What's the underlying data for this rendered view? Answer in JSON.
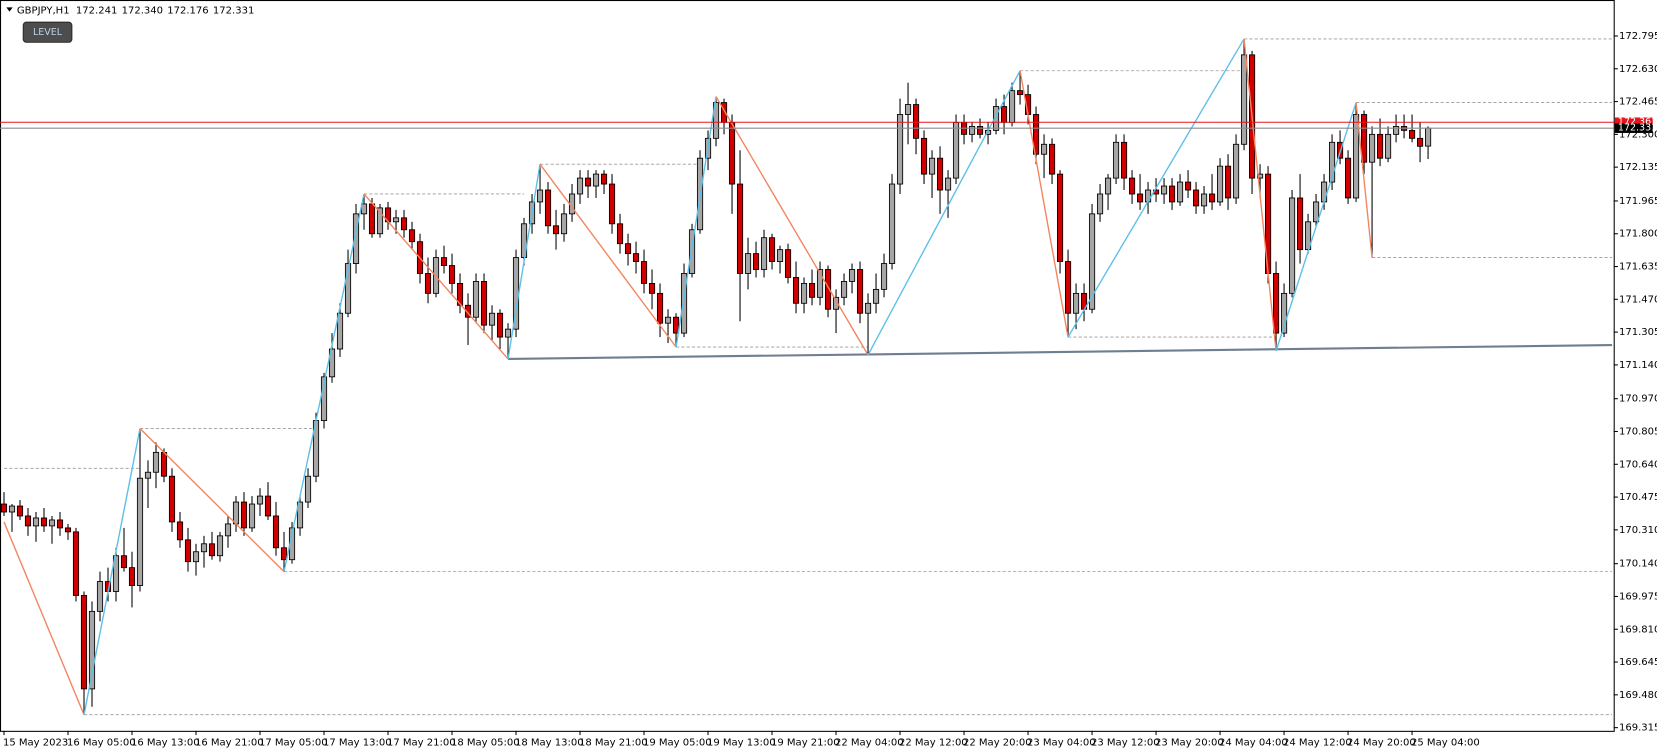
{
  "chart_data": {
    "type": "candlestick",
    "title": "GBPJPY,H1",
    "ohlc_value_labels": [
      "172.241",
      "172.340",
      "172.176",
      "172.331"
    ],
    "button": "LEVEL",
    "up_color": "#a6a6a6",
    "down_color": "#d00000",
    "xlim": [
      -0.5,
      201.2
    ],
    "ylim": [
      169.299,
      172.976
    ],
    "yticks": [
      172.795,
      {
        "value": 172.63,
        "label": "172.630"
      },
      172.465,
      {
        "value": 172.3,
        "label": "172.300"
      },
      172.135,
      171.965,
      {
        "value": 171.8,
        "label": "171.800"
      },
      171.635,
      {
        "value": 171.47,
        "label": "171.470"
      },
      171.305,
      {
        "value": 171.14,
        "label": "171.140"
      },
      {
        "value": 170.97,
        "label": "170.970"
      },
      170.805,
      {
        "value": 170.64,
        "label": "170.640"
      },
      170.475,
      {
        "value": 170.31,
        "label": "170.310"
      },
      {
        "value": 170.14,
        "label": "170.140"
      },
      169.975,
      {
        "value": 169.81,
        "label": "169.810"
      },
      169.645,
      {
        "value": 169.48,
        "label": "169.480"
      },
      169.315
    ],
    "categories": [
      "15 May 2023",
      null,
      null,
      null,
      null,
      null,
      null,
      null,
      "16 May 05:00",
      null,
      null,
      null,
      null,
      null,
      null,
      null,
      "16 May 13:00",
      null,
      null,
      null,
      null,
      null,
      null,
      null,
      "16 May 21:00",
      null,
      null,
      null,
      null,
      null,
      null,
      null,
      "17 May 05:00",
      null,
      null,
      null,
      null,
      null,
      null,
      null,
      "17 May 13:00",
      null,
      null,
      null,
      null,
      null,
      null,
      null,
      "17 May 21:00",
      null,
      null,
      null,
      null,
      null,
      null,
      null,
      "18 May 05:00",
      null,
      null,
      null,
      null,
      null,
      null,
      null,
      "18 May 13:00",
      null,
      null,
      null,
      null,
      null,
      null,
      null,
      "18 May 21:00",
      null,
      null,
      null,
      null,
      null,
      null,
      null,
      "19 May 05:00",
      null,
      null,
      null,
      null,
      null,
      null,
      null,
      "19 May 13:00",
      null,
      null,
      null,
      null,
      null,
      null,
      null,
      "19 May 21:00",
      null,
      null,
      null,
      null,
      null,
      null,
      null,
      "22 May 04:00",
      null,
      null,
      null,
      null,
      null,
      null,
      null,
      "22 May 12:00",
      null,
      null,
      null,
      null,
      null,
      null,
      null,
      "22 May 20:00",
      null,
      null,
      null,
      null,
      null,
      null,
      null,
      "23 May 04:00",
      null,
      null,
      null,
      null,
      null,
      null,
      null,
      "23 May 12:00",
      null,
      null,
      null,
      null,
      null,
      null,
      null,
      "23 May 20:00",
      null,
      null,
      null,
      null,
      null,
      null,
      null,
      "24 May 04:00",
      null,
      null,
      null,
      null,
      null,
      null,
      null,
      "24 May 12:00",
      null,
      null,
      null,
      null,
      null,
      null,
      null,
      "24 May 20:00",
      null,
      null,
      null,
      null,
      null,
      null,
      null,
      "25 May 04:00",
      null,
      null
    ],
    "ohlc": [
      [
        170.44,
        170.5,
        170.38,
        170.4
      ],
      [
        170.4,
        170.44,
        170.3,
        170.43
      ],
      [
        170.43,
        170.46,
        170.36,
        170.38
      ],
      [
        170.38,
        170.42,
        170.28,
        170.33
      ],
      [
        170.33,
        170.4,
        170.25,
        170.37
      ],
      [
        170.37,
        170.42,
        170.3,
        170.33
      ],
      [
        170.33,
        170.38,
        170.24,
        170.36
      ],
      [
        170.36,
        170.4,
        170.28,
        170.32
      ],
      [
        170.32,
        170.34,
        170.26,
        170.3
      ],
      [
        170.3,
        170.32,
        169.95,
        169.98
      ],
      [
        169.98,
        170.0,
        169.38,
        169.51
      ],
      [
        169.51,
        169.95,
        169.42,
        169.9
      ],
      [
        169.9,
        170.1,
        169.85,
        170.05
      ],
      [
        170.05,
        170.12,
        169.95,
        170.0
      ],
      [
        170.0,
        170.22,
        169.95,
        170.18
      ],
      [
        170.18,
        170.32,
        170.1,
        170.12
      ],
      [
        170.12,
        170.2,
        169.92,
        170.03
      ],
      [
        170.03,
        170.82,
        170.0,
        170.57
      ],
      [
        170.57,
        170.66,
        170.42,
        170.6
      ],
      [
        170.6,
        170.75,
        170.52,
        170.7
      ],
      [
        170.7,
        170.72,
        170.55,
        170.58
      ],
      [
        170.58,
        170.62,
        170.3,
        170.35
      ],
      [
        170.35,
        170.4,
        170.22,
        170.26
      ],
      [
        170.26,
        170.32,
        170.1,
        170.15
      ],
      [
        170.15,
        170.24,
        170.08,
        170.2
      ],
      [
        170.2,
        170.28,
        170.12,
        170.24
      ],
      [
        170.24,
        170.3,
        170.16,
        170.18
      ],
      [
        170.18,
        170.3,
        170.15,
        170.28
      ],
      [
        170.28,
        170.38,
        170.22,
        170.34
      ],
      [
        170.34,
        170.48,
        170.3,
        170.45
      ],
      [
        170.45,
        170.5,
        170.28,
        170.32
      ],
      [
        170.32,
        170.48,
        170.3,
        170.44
      ],
      [
        170.44,
        170.52,
        170.38,
        170.48
      ],
      [
        170.48,
        170.55,
        170.36,
        170.38
      ],
      [
        170.38,
        170.45,
        170.18,
        170.22
      ],
      [
        170.22,
        170.3,
        170.1,
        170.16
      ],
      [
        170.16,
        170.35,
        170.14,
        170.32
      ],
      [
        170.32,
        170.48,
        170.28,
        170.45
      ],
      [
        170.45,
        170.62,
        170.42,
        170.58
      ],
      [
        170.58,
        170.9,
        170.55,
        170.86
      ],
      [
        170.86,
        171.1,
        170.82,
        171.08
      ],
      [
        171.08,
        171.3,
        171.05,
        171.22
      ],
      [
        171.22,
        171.45,
        171.18,
        171.4
      ],
      [
        171.4,
        171.72,
        171.38,
        171.65
      ],
      [
        171.65,
        171.95,
        171.6,
        171.9
      ],
      [
        171.9,
        172.0,
        171.82,
        171.95
      ],
      [
        171.95,
        171.98,
        171.78,
        171.8
      ],
      [
        171.8,
        171.95,
        171.78,
        171.93
      ],
      [
        171.93,
        171.96,
        171.82,
        171.86
      ],
      [
        171.86,
        171.92,
        171.8,
        171.88
      ],
      [
        171.88,
        171.92,
        171.78,
        171.82
      ],
      [
        171.82,
        171.86,
        171.72,
        171.76
      ],
      [
        171.76,
        171.8,
        171.55,
        171.6
      ],
      [
        171.6,
        171.68,
        171.45,
        171.5
      ],
      [
        171.5,
        171.72,
        171.48,
        171.68
      ],
      [
        171.68,
        171.74,
        171.6,
        171.64
      ],
      [
        171.64,
        171.7,
        171.5,
        171.55
      ],
      [
        171.55,
        171.6,
        171.4,
        171.44
      ],
      [
        171.44,
        171.5,
        171.24,
        171.38
      ],
      [
        171.38,
        171.6,
        171.35,
        171.56
      ],
      [
        171.56,
        171.6,
        171.3,
        171.34
      ],
      [
        171.34,
        171.44,
        171.26,
        171.4
      ],
      [
        171.4,
        171.42,
        171.22,
        171.28
      ],
      [
        171.28,
        171.35,
        171.17,
        171.32
      ],
      [
        171.32,
        171.72,
        171.28,
        171.68
      ],
      [
        171.68,
        171.88,
        171.64,
        171.85
      ],
      [
        171.85,
        172.0,
        171.8,
        171.96
      ],
      [
        171.96,
        172.15,
        171.9,
        172.02
      ],
      [
        172.02,
        172.06,
        171.8,
        171.84
      ],
      [
        171.84,
        171.92,
        171.72,
        171.8
      ],
      [
        171.8,
        171.95,
        171.76,
        171.9
      ],
      [
        171.9,
        172.05,
        171.86,
        172.0
      ],
      [
        172.0,
        172.12,
        171.95,
        172.08
      ],
      [
        172.08,
        172.12,
        171.98,
        172.04
      ],
      [
        172.04,
        172.12,
        171.98,
        172.1
      ],
      [
        172.1,
        172.12,
        172.0,
        172.05
      ],
      [
        172.05,
        172.1,
        171.8,
        171.85
      ],
      [
        171.85,
        171.9,
        171.7,
        171.75
      ],
      [
        171.75,
        171.8,
        171.64,
        171.7
      ],
      [
        171.7,
        171.76,
        171.6,
        171.66
      ],
      [
        171.66,
        171.72,
        171.5,
        171.55
      ],
      [
        171.55,
        171.62,
        171.42,
        171.5
      ],
      [
        171.5,
        171.55,
        171.28,
        171.35
      ],
      [
        171.35,
        171.42,
        171.25,
        171.38
      ],
      [
        171.38,
        171.4,
        171.23,
        171.3
      ],
      [
        171.3,
        171.65,
        171.28,
        171.6
      ],
      [
        171.6,
        171.85,
        171.58,
        171.82
      ],
      [
        171.82,
        172.22,
        171.8,
        172.18
      ],
      [
        172.18,
        172.32,
        172.12,
        172.28
      ],
      [
        172.28,
        172.49,
        172.24,
        172.46
      ],
      [
        172.46,
        172.48,
        172.3,
        172.36
      ],
      [
        172.36,
        172.4,
        171.9,
        172.05
      ],
      [
        172.05,
        172.22,
        171.36,
        171.6
      ],
      [
        171.6,
        171.78,
        171.52,
        171.7
      ],
      [
        171.7,
        171.76,
        171.58,
        171.62
      ],
      [
        171.62,
        171.82,
        171.58,
        171.78
      ],
      [
        171.78,
        171.8,
        171.62,
        171.66
      ],
      [
        171.66,
        171.74,
        171.6,
        171.72
      ],
      [
        171.72,
        171.75,
        171.55,
        171.58
      ],
      [
        171.58,
        171.66,
        171.4,
        171.45
      ],
      [
        171.45,
        171.58,
        171.4,
        171.55
      ],
      [
        171.55,
        171.62,
        171.44,
        171.48
      ],
      [
        171.48,
        171.66,
        171.44,
        171.62
      ],
      [
        171.62,
        171.64,
        171.38,
        171.42
      ],
      [
        171.42,
        171.52,
        171.3,
        171.48
      ],
      [
        171.48,
        171.6,
        171.44,
        171.56
      ],
      [
        171.56,
        171.65,
        171.5,
        171.62
      ],
      [
        171.62,
        171.66,
        171.35,
        171.4
      ],
      [
        171.4,
        171.5,
        171.19,
        171.45
      ],
      [
        171.45,
        171.6,
        171.4,
        171.52
      ],
      [
        171.52,
        171.7,
        171.48,
        171.65
      ],
      [
        171.65,
        172.1,
        171.62,
        172.05
      ],
      [
        172.05,
        172.48,
        172.0,
        172.4
      ],
      [
        172.4,
        172.56,
        172.25,
        172.45
      ],
      [
        172.45,
        172.48,
        172.2,
        172.28
      ],
      [
        172.28,
        172.32,
        172.05,
        172.1
      ],
      [
        172.1,
        172.22,
        171.98,
        172.18
      ],
      [
        172.18,
        172.24,
        171.9,
        172.02
      ],
      [
        172.02,
        172.12,
        171.88,
        172.08
      ],
      [
        172.08,
        172.4,
        172.05,
        172.36
      ],
      [
        172.36,
        172.4,
        172.25,
        172.3
      ],
      [
        172.3,
        172.36,
        172.26,
        172.34
      ],
      [
        172.34,
        172.38,
        172.28,
        172.3
      ],
      [
        172.3,
        172.36,
        172.25,
        172.32
      ],
      [
        172.32,
        172.48,
        172.3,
        172.44
      ],
      [
        172.44,
        172.5,
        172.3,
        172.36
      ],
      [
        172.36,
        172.56,
        172.34,
        172.52
      ],
      [
        172.52,
        172.62,
        172.45,
        172.5
      ],
      [
        172.5,
        172.55,
        172.35,
        172.4
      ],
      [
        172.4,
        172.44,
        172.15,
        172.2
      ],
      [
        172.2,
        172.3,
        172.08,
        172.25
      ],
      [
        172.25,
        172.28,
        172.05,
        172.1
      ],
      [
        172.1,
        172.12,
        171.6,
        171.66
      ],
      [
        171.66,
        171.72,
        171.28,
        171.4
      ],
      [
        171.4,
        171.55,
        171.32,
        171.5
      ],
      [
        171.5,
        171.55,
        171.36,
        171.42
      ],
      [
        171.42,
        171.95,
        171.4,
        171.9
      ],
      [
        171.9,
        172.05,
        171.86,
        172.0
      ],
      [
        172.0,
        172.1,
        171.92,
        172.08
      ],
      [
        172.08,
        172.3,
        172.05,
        172.26
      ],
      [
        172.26,
        172.3,
        172.02,
        172.08
      ],
      [
        172.08,
        172.12,
        171.95,
        172.0
      ],
      [
        172.0,
        172.1,
        171.92,
        171.96
      ],
      [
        171.96,
        172.06,
        171.9,
        172.02
      ],
      [
        172.02,
        172.08,
        171.96,
        172.0
      ],
      [
        172.0,
        172.08,
        171.95,
        172.04
      ],
      [
        172.04,
        172.08,
        171.92,
        171.96
      ],
      [
        171.96,
        172.1,
        171.94,
        172.06
      ],
      [
        172.06,
        172.12,
        171.98,
        172.02
      ],
      [
        172.02,
        172.06,
        171.9,
        171.94
      ],
      [
        171.94,
        172.04,
        171.9,
        172.0
      ],
      [
        172.0,
        172.1,
        171.92,
        171.96
      ],
      [
        171.96,
        172.18,
        171.94,
        172.14
      ],
      [
        172.14,
        172.2,
        171.92,
        171.98
      ],
      [
        171.98,
        172.3,
        171.95,
        172.25
      ],
      [
        172.25,
        172.78,
        172.22,
        172.7
      ],
      [
        172.7,
        172.72,
        172.0,
        172.08
      ],
      [
        172.08,
        172.15,
        171.98,
        172.1
      ],
      [
        172.1,
        172.14,
        171.55,
        171.6
      ],
      [
        171.6,
        171.66,
        171.21,
        171.3
      ],
      [
        171.3,
        171.55,
        171.28,
        171.5
      ],
      [
        171.5,
        172.02,
        171.48,
        171.98
      ],
      [
        171.98,
        172.1,
        171.65,
        171.72
      ],
      [
        171.72,
        171.9,
        171.7,
        171.86
      ],
      [
        171.86,
        172.0,
        171.84,
        171.96
      ],
      [
        171.96,
        172.1,
        171.92,
        172.06
      ],
      [
        172.06,
        172.3,
        172.02,
        172.26
      ],
      [
        172.26,
        172.32,
        172.15,
        172.18
      ],
      [
        172.18,
        172.22,
        171.95,
        171.98
      ],
      [
        171.98,
        172.46,
        171.96,
        172.4
      ],
      [
        172.4,
        172.42,
        172.1,
        172.16
      ],
      [
        172.16,
        172.34,
        171.68,
        172.3
      ],
      [
        172.3,
        172.38,
        172.14,
        172.18
      ],
      [
        172.18,
        172.34,
        172.16,
        172.3
      ],
      [
        172.3,
        172.4,
        172.26,
        172.34
      ],
      [
        172.34,
        172.4,
        172.28,
        172.32
      ],
      [
        172.32,
        172.4,
        172.26,
        172.28
      ],
      [
        172.28,
        172.36,
        172.16,
        172.24
      ],
      [
        172.241,
        172.34,
        172.176,
        172.331
      ]
    ],
    "zigzag": {
      "up_color": "#5bc0e8",
      "down_color": "#f4845f",
      "x": [
        0,
        10,
        17,
        35,
        45,
        63,
        67,
        84,
        89,
        108,
        127,
        133,
        155,
        159,
        169,
        171
      ],
      "y": [
        170.35,
        169.38,
        170.82,
        170.1,
        172.0,
        171.17,
        172.15,
        171.23,
        172.49,
        171.19,
        172.62,
        171.28,
        172.78,
        171.21,
        172.46,
        171.68
      ]
    },
    "levels": [
      {
        "from": 0,
        "to": 17,
        "price": 170.62
      },
      {
        "from": 10,
        "to": 201,
        "price": 169.38
      },
      {
        "from": 17,
        "to": 39,
        "price": 170.82
      },
      {
        "from": 35,
        "to": 201,
        "price": 170.1
      },
      {
        "from": 45,
        "to": 65,
        "price": 172.0
      },
      {
        "from": 67,
        "to": 87,
        "price": 172.15
      },
      {
        "from": 84,
        "to": 108,
        "price": 171.23
      },
      {
        "from": 127,
        "to": 155,
        "price": 172.62
      },
      {
        "from": 133,
        "to": 159,
        "price": 171.28
      },
      {
        "from": 155,
        "to": 201,
        "price": 172.78
      },
      {
        "from": 169,
        "to": 201,
        "price": 172.46
      },
      {
        "from": 171,
        "to": 201,
        "price": 171.68
      }
    ],
    "levels_color": "#9a9a9a",
    "trendline": {
      "x": [
        63,
        201
      ],
      "y": [
        171.17,
        171.24
      ],
      "color": "#6d7f90"
    },
    "ask": {
      "value": 172.361,
      "color": "#e8141c"
    },
    "bid": {
      "value": 172.331,
      "color": "#8a8a8a"
    }
  }
}
